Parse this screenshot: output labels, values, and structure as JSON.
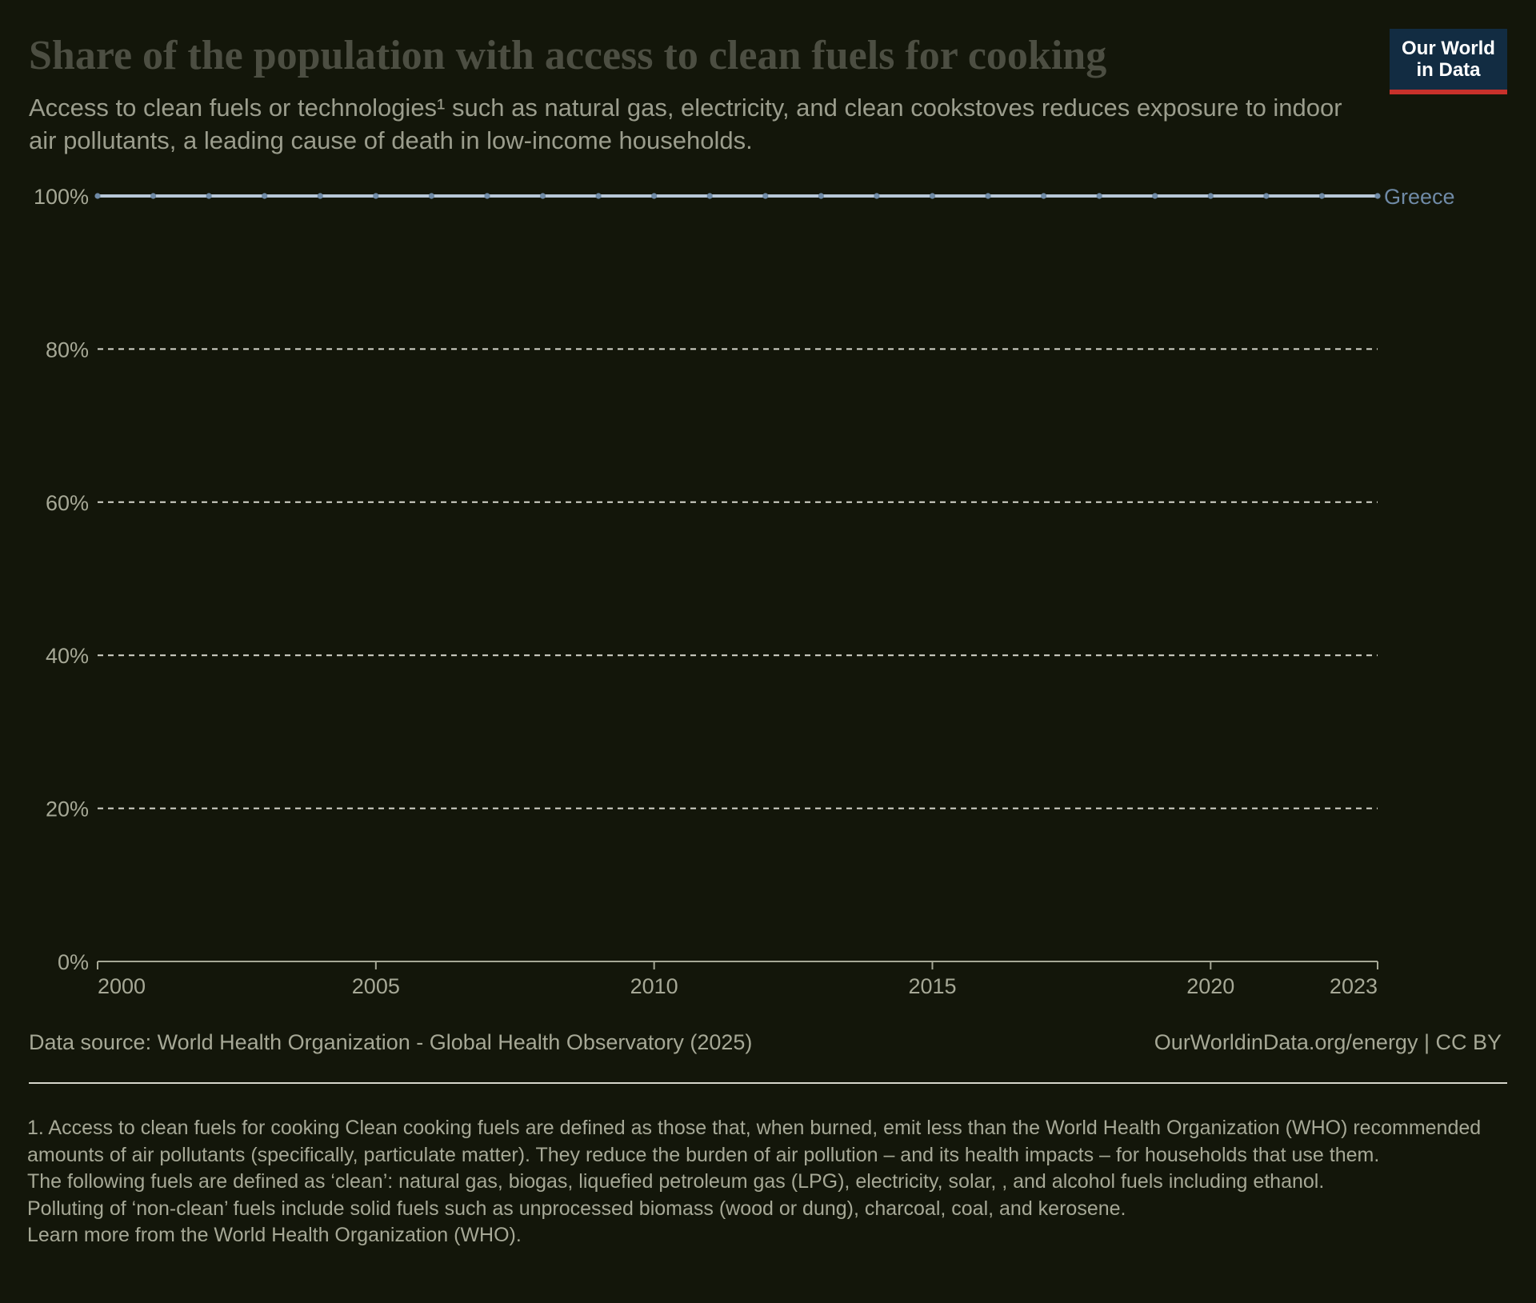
{
  "header": {
    "title": "Share of the population with access to clean fuels for cooking",
    "subtitle": "Access to clean fuels or technologies¹ such as natural gas, electricity, and clean cookstoves reduces exposure to indoor air pollutants, a leading cause of death in low-income households."
  },
  "logo": {
    "line1": "Our World",
    "line2": "in Data"
  },
  "footer": {
    "source": "Data source: World Health Organization - Global Health Observatory (2025)",
    "credit": "OurWorldinData.org/energy | CC BY"
  },
  "footnotes": [
    "1. Access to clean fuels for cooking Clean cooking fuels are defined as those that, when burned, emit less than the World Health Organization (WHO) recommended amounts of air pollutants (specifically, particulate matter). They reduce the burden of air pollution – and its health impacts – for households that use them.",
    "The following fuels are defined as ‘clean’: natural gas, biogas, liquefied petroleum gas (LPG), electricity, solar, , and alcohol fuels including ethanol.",
    "Polluting of ‘non-clean’ fuels include solid fuels such as unprocessed biomass (wood or dung), charcoal, coal, and kerosene.",
    "Learn more from the World Health Organization (WHO)."
  ],
  "colors": {
    "series": "#b8c8d8",
    "series_label": "#6f8aa6",
    "grid": "#d6d6cc",
    "axis": "#a6a896",
    "tick_label": "#a6a896"
  },
  "chart_data": {
    "type": "line",
    "xlim": [
      2000,
      2023
    ],
    "ylim": [
      0,
      100
    ],
    "x_ticks": [
      2000,
      2005,
      2010,
      2015,
      2020,
      2023
    ],
    "x_tick_labels": [
      "2000",
      "2005",
      "2010",
      "2015",
      "2020",
      "2023"
    ],
    "y_ticks": [
      0,
      20,
      40,
      60,
      80,
      100
    ],
    "y_tick_labels": [
      "0%",
      "20%",
      "40%",
      "60%",
      "80%",
      "100%"
    ],
    "grid": true,
    "legend": "end-of-line labels",
    "x": [
      2000,
      2001,
      2002,
      2003,
      2004,
      2005,
      2006,
      2007,
      2008,
      2009,
      2010,
      2011,
      2012,
      2013,
      2014,
      2015,
      2016,
      2017,
      2018,
      2019,
      2020,
      2021,
      2022,
      2023
    ],
    "series": [
      {
        "name": "Greece",
        "values": [
          100,
          100,
          100,
          100,
          100,
          100,
          100,
          100,
          100,
          100,
          100,
          100,
          100,
          100,
          100,
          100,
          100,
          100,
          100,
          100,
          100,
          100,
          100,
          100
        ]
      }
    ]
  }
}
